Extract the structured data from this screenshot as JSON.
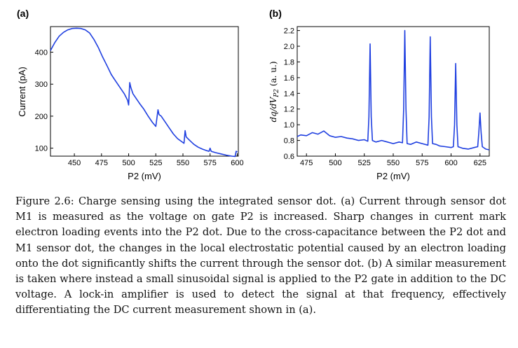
{
  "figure": {
    "panels": [
      "(a)",
      "(b)"
    ]
  },
  "caption": "Figure 2.6:  Charge sensing using the integrated sensor dot. (a) Current through sensor dot M1 is measured as the voltage on gate P2 is increased. Sharp changes in current mark electron loading events into the P2 dot. Due to the cross-capacitance between the P2 dot and M1 sensor dot, the changes in the local electrostatic potential caused by an electron loading onto the dot significantly shifts the current through the sensor dot. (b) A similar measurement is taken where instead a small sinusoidal signal is applied to the P2 gate in addition to the DC voltage. A lock-in amplifier is used to detect the signal at that frequency, effectively differentiating the DC current measurement shown in (a).",
  "colors": {
    "trace": "#1f3fe0"
  },
  "chart_data": [
    {
      "type": "line",
      "panel": "(a)",
      "xlabel": "P2 (mV)",
      "ylabel": "Current (pA)",
      "xlim": [
        428,
        601
      ],
      "ylim": [
        75,
        480
      ],
      "xticks": [
        450,
        475,
        500,
        525,
        550,
        575,
        600
      ],
      "yticks": [
        100,
        200,
        300,
        400
      ],
      "grid": false,
      "x": [
        428,
        432,
        436,
        440,
        444,
        448,
        452,
        456,
        460,
        464,
        468,
        472,
        476,
        480,
        484,
        488,
        492,
        496,
        499,
        500,
        501,
        502,
        504,
        507,
        510,
        514,
        518,
        522,
        525,
        527,
        528,
        530,
        533,
        537,
        541,
        545,
        549,
        551,
        552,
        553,
        556,
        560,
        564,
        568,
        572,
        574,
        575,
        576,
        580,
        585,
        590,
        595,
        598,
        599,
        600
      ],
      "y": [
        405,
        430,
        450,
        462,
        470,
        474,
        475,
        474,
        470,
        460,
        440,
        415,
        385,
        358,
        330,
        310,
        290,
        270,
        250,
        235,
        305,
        290,
        270,
        255,
        240,
        222,
        200,
        180,
        168,
        220,
        205,
        200,
        185,
        165,
        145,
        130,
        120,
        115,
        155,
        135,
        125,
        112,
        103,
        97,
        92,
        90,
        100,
        90,
        86,
        82,
        78,
        75,
        74,
        90,
        88
      ]
    },
    {
      "type": "line",
      "panel": "(b)",
      "xlabel": "P2 (mV)",
      "ylabel": "dq/dV_P2 (a. u.)",
      "xlim": [
        467,
        633
      ],
      "ylim": [
        0.6,
        2.25
      ],
      "xticks": [
        475,
        500,
        525,
        550,
        575,
        600,
        625
      ],
      "yticks": [
        0.6,
        0.8,
        1.0,
        1.2,
        1.4,
        1.6,
        1.8,
        2.0,
        2.2
      ],
      "grid": false,
      "x": [
        467,
        470,
        475,
        480,
        485,
        490,
        495,
        500,
        505,
        510,
        515,
        520,
        525,
        528,
        529,
        530,
        531,
        532,
        535,
        540,
        545,
        550,
        555,
        558,
        559,
        560,
        561,
        562,
        565,
        570,
        575,
        580,
        581,
        582,
        583,
        584,
        587,
        590,
        595,
        600,
        602,
        603,
        604,
        605,
        606,
        610,
        615,
        620,
        623,
        624,
        625,
        626,
        627,
        630,
        633
      ],
      "y": [
        0.85,
        0.87,
        0.86,
        0.9,
        0.88,
        0.92,
        0.86,
        0.84,
        0.85,
        0.83,
        0.82,
        0.8,
        0.81,
        0.79,
        1.1,
        2.03,
        1.1,
        0.8,
        0.78,
        0.8,
        0.78,
        0.76,
        0.78,
        0.77,
        1.2,
        2.2,
        1.2,
        0.76,
        0.75,
        0.78,
        0.76,
        0.74,
        1.1,
        2.12,
        1.1,
        0.76,
        0.75,
        0.73,
        0.72,
        0.71,
        0.72,
        1.0,
        1.78,
        1.0,
        0.72,
        0.7,
        0.69,
        0.71,
        0.72,
        0.9,
        1.15,
        0.9,
        0.72,
        0.69,
        0.68
      ]
    }
  ]
}
